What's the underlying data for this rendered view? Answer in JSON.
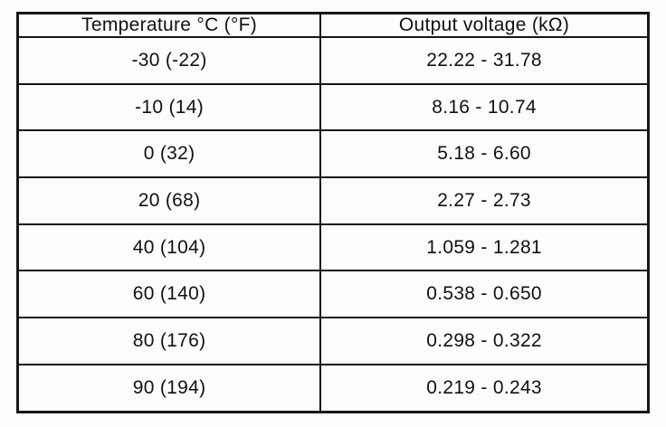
{
  "table": {
    "headers": {
      "temperature": "Temperature °C (°F)",
      "voltage": "Output voltage (kΩ)"
    },
    "rows": [
      {
        "temp": "-30 (-22)",
        "voltage": "22.22 - 31.78"
      },
      {
        "temp": "-10 (14)",
        "voltage": "8.16 - 10.74"
      },
      {
        "temp": "0 (32)",
        "voltage": "5.18 - 6.60"
      },
      {
        "temp": "20 (68)",
        "voltage": "2.27 - 2.73"
      },
      {
        "temp": "40 (104)",
        "voltage": "1.059 - 1.281"
      },
      {
        "temp": "60 (140)",
        "voltage": "0.538 - 0.650"
      },
      {
        "temp": "80 (176)",
        "voltage": "0.298 - 0.322"
      },
      {
        "temp": "90 (194)",
        "voltage": "0.219 - 0.243"
      }
    ]
  }
}
